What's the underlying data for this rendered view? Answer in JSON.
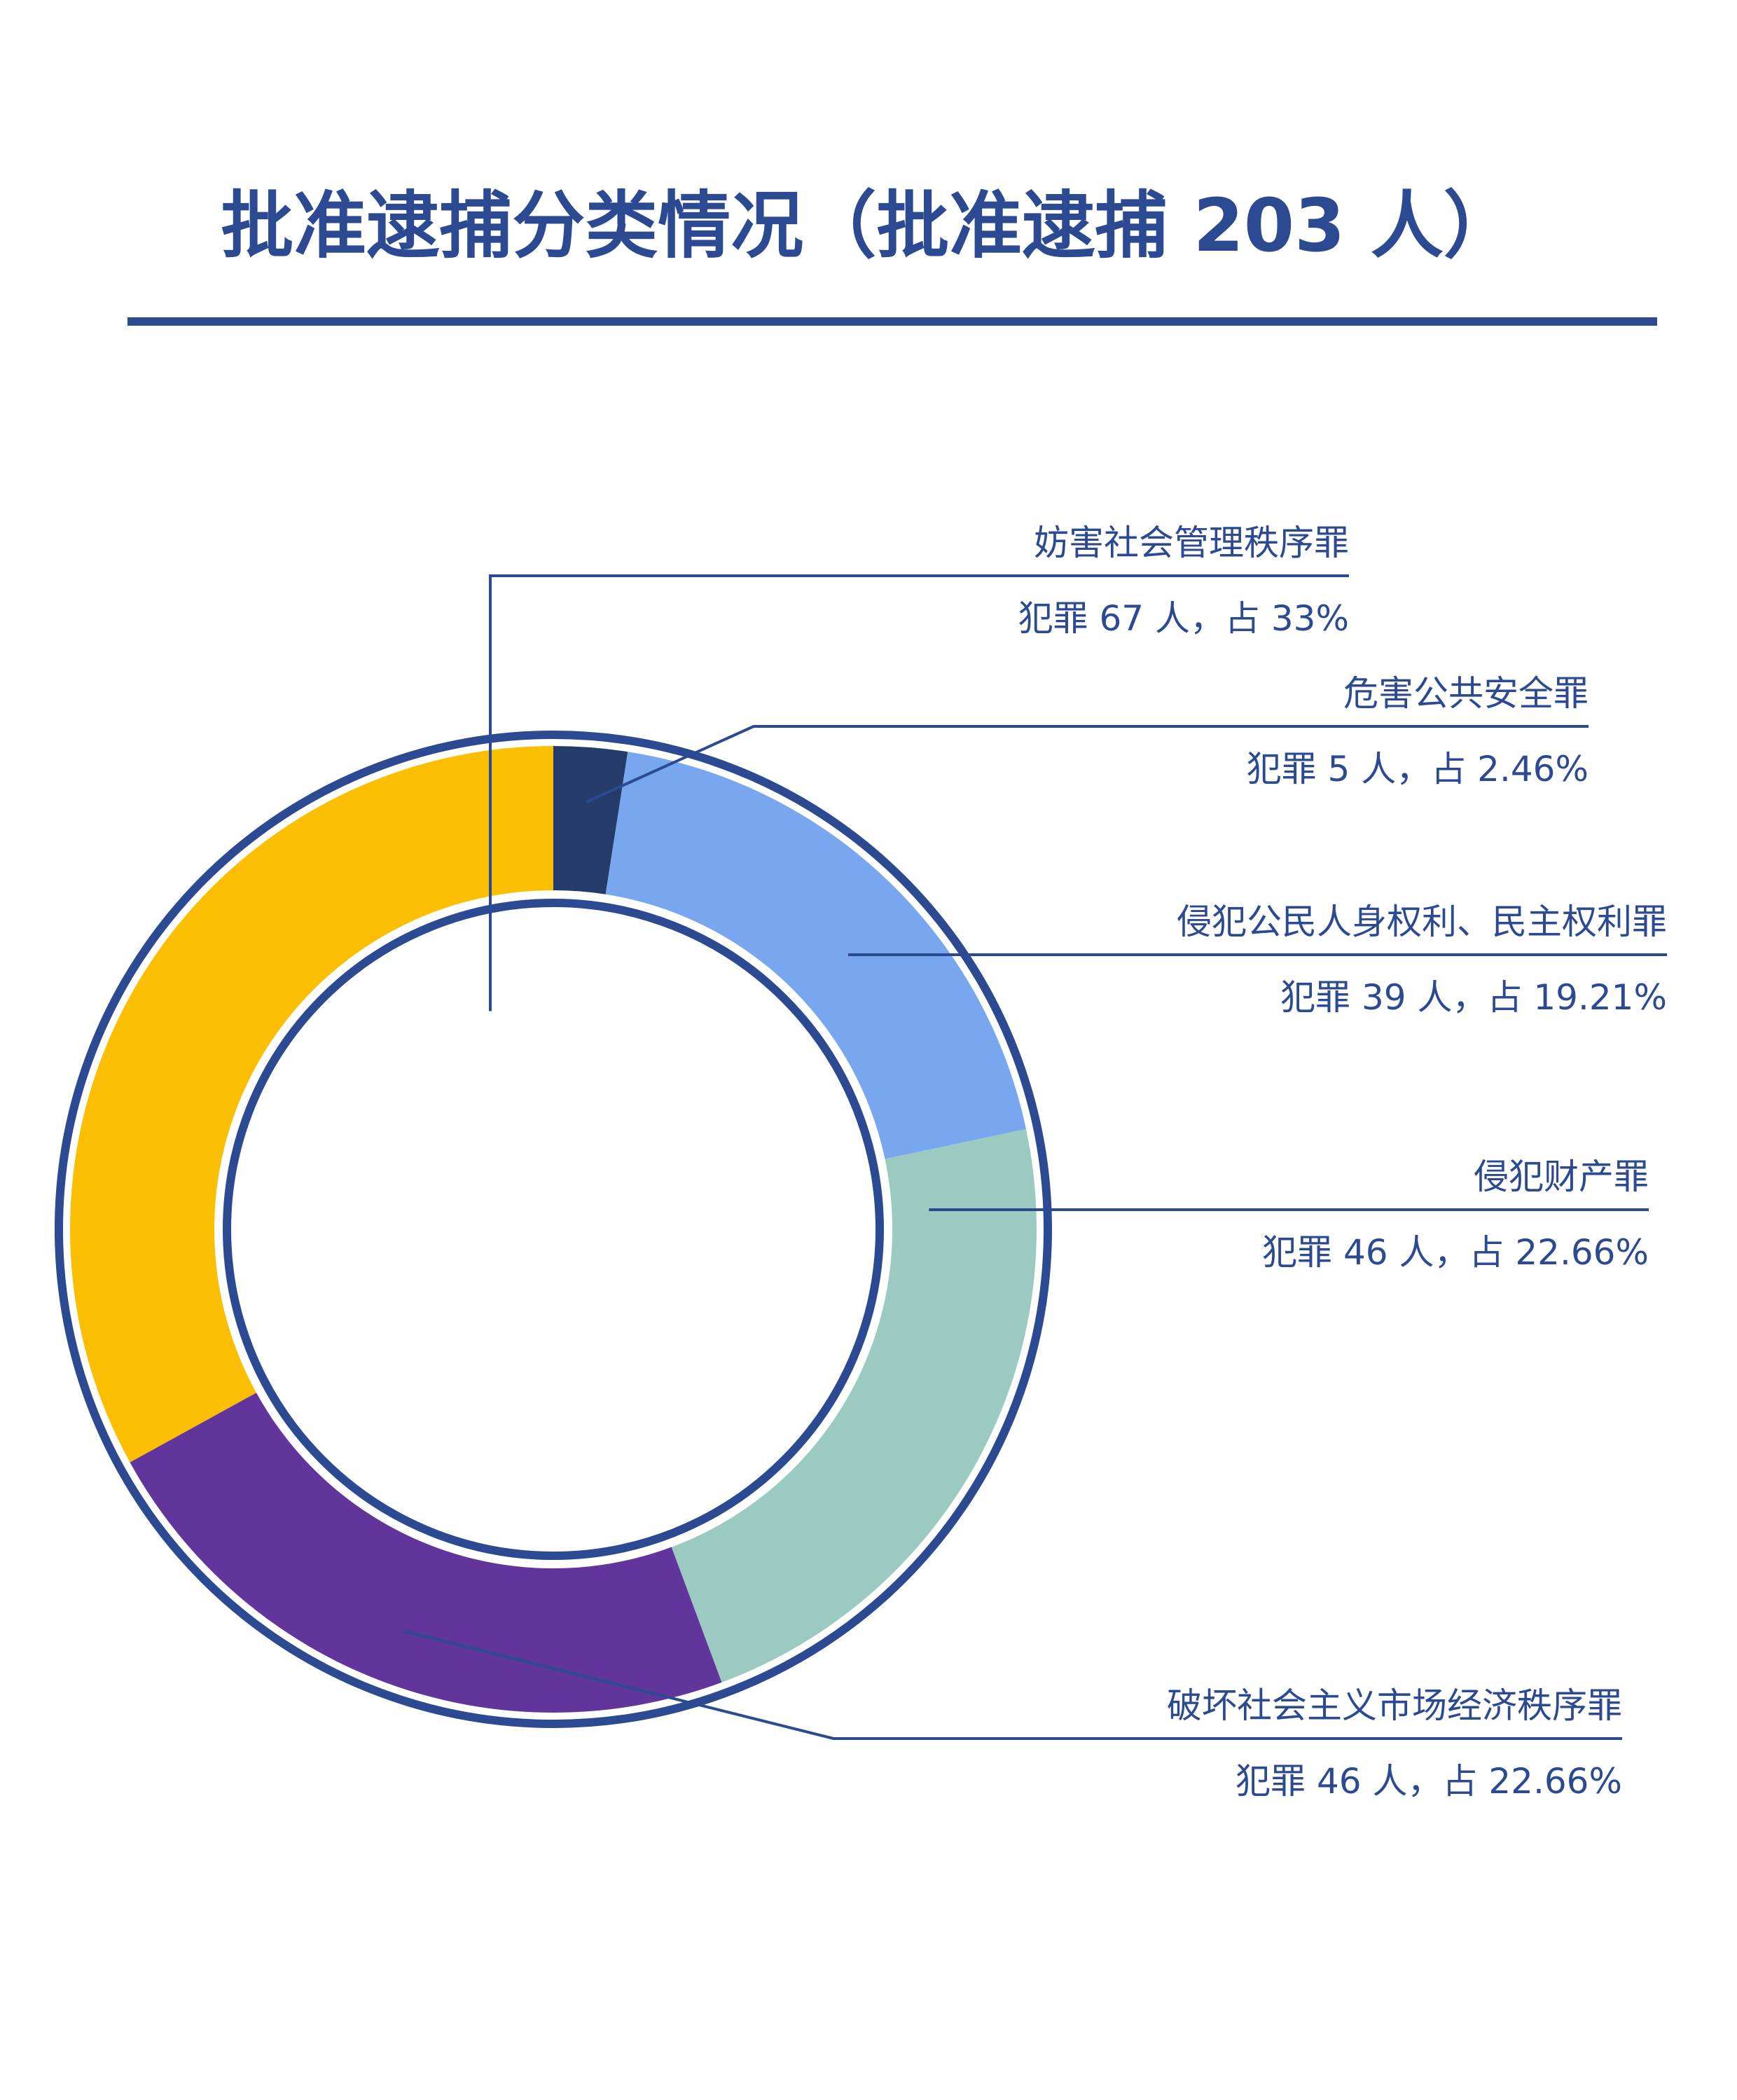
{
  "title": "批准逮捕分类情况（批准逮捕 203 人）",
  "colors": {
    "primary": "#2b4a91",
    "slices": [
      "#253b69",
      "#78a7ef",
      "#9bcbc0",
      "#61359b",
      "#fbbe00"
    ]
  },
  "chart_data": {
    "type": "pie",
    "variant": "donut",
    "total": 203,
    "start_position": "top",
    "direction": "clockwise",
    "series": [
      {
        "values": [
          {
            "category": "危害公共安全罪",
            "count": 5,
            "percent": 2.46,
            "label_line1": "危害公共安全罪",
            "label_line2": "犯罪 5 人，占 2.46%"
          },
          {
            "category": "侵犯公民人身权利、民主权利罪",
            "count": 39,
            "percent": 19.21,
            "label_line1": "侵犯公民人身权利、民主权利罪",
            "label_line2": "犯罪 39 人，占 19.21%"
          },
          {
            "category": "侵犯财产罪",
            "count": 46,
            "percent": 22.66,
            "label_line1": "侵犯财产罪",
            "label_line2": "犯罪 46 人，占 22.66%"
          },
          {
            "category": "破坏社会主义市场经济秩序罪",
            "count": 46,
            "percent": 22.66,
            "label_line1": "破坏社会主义市场经济秩序罪",
            "label_line2": "犯罪 46 人，占 22.66%"
          },
          {
            "category": "妨害社会管理秩序罪",
            "count": 67,
            "percent": 33,
            "label_line1": "妨害社会管理秩序罪",
            "label_line2": "犯罪 67 人，占 33%"
          }
        ]
      }
    ]
  }
}
